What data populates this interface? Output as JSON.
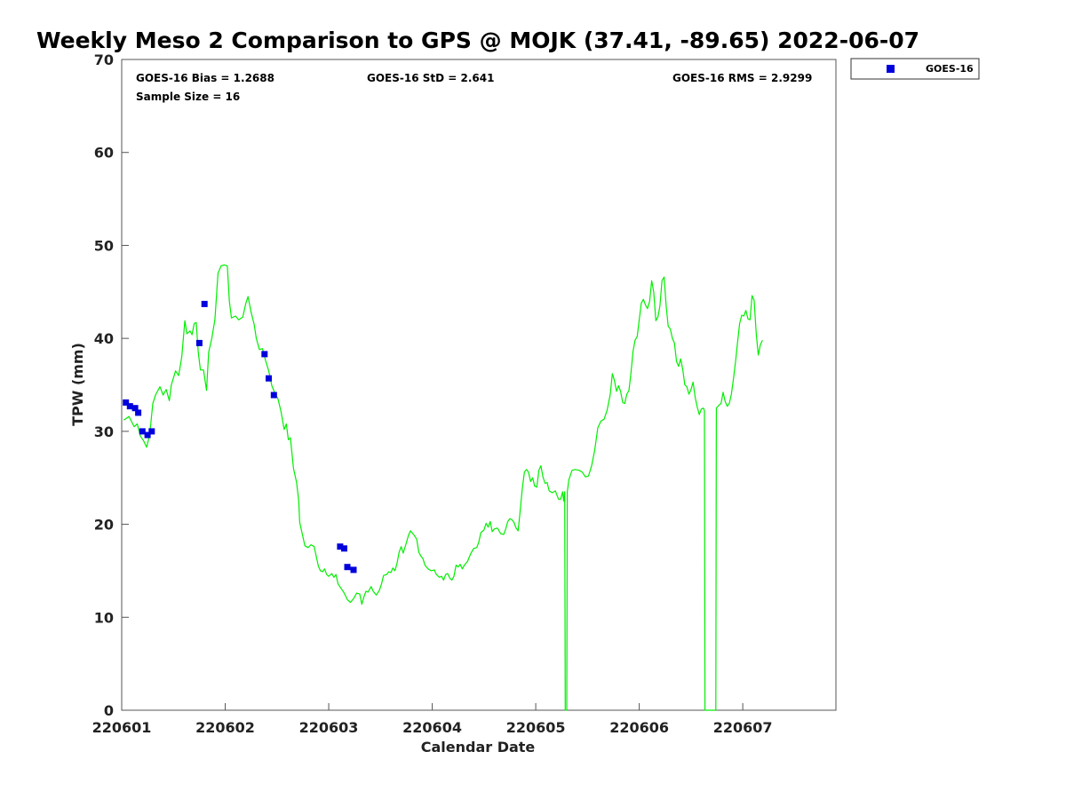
{
  "chart_data": {
    "type": "line",
    "title": "Weekly Meso 2 Comparison to GPS @ MOJK (37.41, -89.65) 2022-06-07",
    "xlabel": "Calendar Date",
    "ylabel": "TPW (mm)",
    "xlim": [
      0,
      6.9
    ],
    "ylim": [
      0,
      70
    ],
    "xticks": [
      0,
      1,
      2,
      3,
      4,
      5,
      6
    ],
    "xtick_labels": [
      "220601",
      "220602",
      "220603",
      "220604",
      "220605",
      "220606",
      "220607"
    ],
    "yticks": [
      0,
      10,
      20,
      30,
      40,
      50,
      60,
      70
    ],
    "ytick_labels": [
      "0",
      "10",
      "20",
      "30",
      "40",
      "50",
      "60",
      "70"
    ],
    "stats": {
      "bias": "GOES-16 Bias = 1.2688",
      "std": "GOES-16 StD = 2.641",
      "rms": "GOES-16 RMS = 2.9299",
      "sample": "Sample Size = 16"
    },
    "legend": {
      "label": "GOES-16",
      "placement": "top-right outside"
    },
    "series": [
      {
        "name": "GPS",
        "kind": "line",
        "color": "#00ee00",
        "points": [
          [
            0.02,
            31.2
          ],
          [
            0.07,
            31.6
          ],
          [
            0.12,
            30.5
          ],
          [
            0.15,
            30.8
          ],
          [
            0.18,
            29.5
          ],
          [
            0.21,
            29.0
          ],
          [
            0.24,
            28.3
          ],
          [
            0.27,
            29.6
          ],
          [
            0.3,
            33.0
          ],
          [
            0.33,
            34.0
          ],
          [
            0.37,
            34.8
          ],
          [
            0.4,
            33.9
          ],
          [
            0.43,
            34.5
          ],
          [
            0.46,
            33.3
          ],
          [
            0.48,
            35.0
          ],
          [
            0.52,
            36.5
          ],
          [
            0.55,
            36.0
          ],
          [
            0.58,
            38.0
          ],
          [
            0.61,
            41.9
          ],
          [
            0.63,
            40.5
          ],
          [
            0.66,
            40.8
          ],
          [
            0.68,
            40.4
          ],
          [
            0.7,
            41.6
          ],
          [
            0.72,
            41.7
          ],
          [
            0.74,
            38.5
          ],
          [
            0.76,
            36.6
          ],
          [
            0.79,
            36.6
          ],
          [
            0.82,
            34.4
          ],
          [
            0.84,
            38.5
          ],
          [
            0.87,
            40.0
          ],
          [
            0.9,
            42.0
          ],
          [
            0.93,
            47.0
          ],
          [
            0.96,
            47.8
          ],
          [
            0.99,
            47.9
          ],
          [
            1.02,
            47.8
          ],
          [
            1.04,
            44.0
          ],
          [
            1.06,
            42.2
          ],
          [
            1.1,
            42.4
          ],
          [
            1.13,
            42.0
          ],
          [
            1.17,
            42.3
          ],
          [
            1.2,
            43.8
          ],
          [
            1.22,
            44.5
          ],
          [
            1.25,
            42.8
          ],
          [
            1.28,
            41.5
          ],
          [
            1.3,
            40.0
          ],
          [
            1.33,
            38.8
          ],
          [
            1.36,
            38.9
          ],
          [
            1.39,
            37.6
          ],
          [
            1.42,
            36.5
          ],
          [
            1.45,
            34.9
          ],
          [
            1.48,
            34.1
          ],
          [
            1.51,
            33.5
          ],
          [
            1.54,
            32.1
          ],
          [
            1.57,
            30.2
          ],
          [
            1.59,
            30.8
          ],
          [
            1.61,
            29.1
          ],
          [
            1.63,
            29.3
          ],
          [
            1.66,
            26.0
          ],
          [
            1.69,
            24.5
          ],
          [
            1.71,
            22.5
          ],
          [
            1.72,
            20.2
          ],
          [
            1.74,
            19.2
          ],
          [
            1.77,
            17.7
          ],
          [
            1.8,
            17.5
          ],
          [
            1.83,
            17.8
          ],
          [
            1.86,
            17.6
          ],
          [
            1.88,
            16.5
          ],
          [
            1.9,
            15.5
          ],
          [
            1.92,
            15.0
          ],
          [
            1.94,
            14.9
          ],
          [
            1.96,
            15.2
          ],
          [
            1.98,
            14.6
          ],
          [
            2.0,
            14.4
          ],
          [
            2.03,
            14.7
          ],
          [
            2.05,
            14.3
          ],
          [
            2.07,
            14.6
          ],
          [
            2.09,
            13.6
          ],
          [
            2.12,
            13.1
          ],
          [
            2.15,
            12.6
          ],
          [
            2.18,
            11.9
          ],
          [
            2.21,
            11.6
          ],
          [
            2.24,
            12.0
          ],
          [
            2.27,
            12.6
          ],
          [
            2.3,
            12.5
          ],
          [
            2.32,
            11.4
          ],
          [
            2.34,
            12.2
          ],
          [
            2.36,
            12.8
          ],
          [
            2.38,
            12.7
          ],
          [
            2.41,
            13.3
          ],
          [
            2.43,
            12.8
          ],
          [
            2.46,
            12.4
          ],
          [
            2.49,
            12.9
          ],
          [
            2.51,
            13.6
          ],
          [
            2.53,
            14.5
          ],
          [
            2.56,
            14.6
          ],
          [
            2.58,
            14.9
          ],
          [
            2.6,
            14.8
          ],
          [
            2.62,
            15.3
          ],
          [
            2.64,
            15.0
          ],
          [
            2.66,
            15.8
          ],
          [
            2.68,
            17.0
          ],
          [
            2.7,
            17.6
          ],
          [
            2.72,
            16.9
          ],
          [
            2.75,
            18.0
          ],
          [
            2.77,
            18.8
          ],
          [
            2.79,
            19.3
          ],
          [
            2.82,
            18.9
          ],
          [
            2.85,
            18.4
          ],
          [
            2.87,
            17.0
          ],
          [
            2.89,
            16.6
          ],
          [
            2.91,
            16.3
          ],
          [
            2.93,
            15.6
          ],
          [
            2.96,
            15.2
          ],
          [
            2.99,
            15.0
          ],
          [
            3.02,
            15.1
          ],
          [
            3.04,
            14.6
          ],
          [
            3.07,
            14.3
          ],
          [
            3.09,
            14.4
          ],
          [
            3.11,
            14.0
          ],
          [
            3.13,
            14.6
          ],
          [
            3.15,
            14.7
          ],
          [
            3.17,
            14.2
          ],
          [
            3.19,
            14.0
          ],
          [
            3.21,
            14.4
          ],
          [
            3.23,
            15.6
          ],
          [
            3.25,
            15.4
          ],
          [
            3.27,
            15.7
          ],
          [
            3.29,
            15.2
          ],
          [
            3.31,
            15.6
          ],
          [
            3.34,
            16.0
          ],
          [
            3.37,
            16.8
          ],
          [
            3.4,
            17.4
          ],
          [
            3.43,
            17.5
          ],
          [
            3.45,
            18.1
          ],
          [
            3.47,
            19.1
          ],
          [
            3.5,
            19.4
          ],
          [
            3.52,
            20.1
          ],
          [
            3.54,
            19.7
          ],
          [
            3.56,
            20.3
          ],
          [
            3.58,
            19.2
          ],
          [
            3.6,
            19.5
          ],
          [
            3.63,
            19.6
          ],
          [
            3.66,
            19.0
          ],
          [
            3.69,
            18.9
          ],
          [
            3.71,
            19.5
          ],
          [
            3.73,
            20.3
          ],
          [
            3.75,
            20.6
          ],
          [
            3.77,
            20.5
          ],
          [
            3.79,
            20.2
          ],
          [
            3.81,
            19.6
          ],
          [
            3.83,
            19.3
          ],
          [
            3.85,
            21.5
          ],
          [
            3.87,
            23.8
          ],
          [
            3.89,
            25.6
          ],
          [
            3.91,
            25.9
          ],
          [
            3.93,
            25.6
          ],
          [
            3.95,
            24.6
          ],
          [
            3.97,
            25.0
          ],
          [
            3.99,
            24.1
          ],
          [
            4.01,
            24.0
          ],
          [
            4.03,
            25.8
          ],
          [
            4.05,
            26.3
          ],
          [
            4.07,
            25.1
          ],
          [
            4.09,
            24.4
          ],
          [
            4.11,
            24.5
          ],
          [
            4.13,
            23.6
          ],
          [
            4.16,
            23.4
          ],
          [
            4.19,
            23.6
          ],
          [
            4.22,
            22.7
          ],
          [
            4.24,
            22.7
          ],
          [
            4.26,
            23.5
          ],
          [
            4.27,
            22.5
          ],
          [
            4.28,
            23.5
          ],
          [
            4.285,
            0
          ],
          [
            4.3,
            0
          ],
          [
            4.305,
            23.5
          ],
          [
            4.32,
            24.8
          ],
          [
            4.35,
            25.8
          ],
          [
            4.38,
            25.9
          ],
          [
            4.42,
            25.8
          ],
          [
            4.45,
            25.6
          ],
          [
            4.48,
            25.1
          ],
          [
            4.51,
            25.2
          ],
          [
            4.54,
            26.3
          ],
          [
            4.57,
            28.0
          ],
          [
            4.6,
            30.4
          ],
          [
            4.63,
            31.1
          ],
          [
            4.66,
            31.3
          ],
          [
            4.69,
            32.3
          ],
          [
            4.72,
            34.0
          ],
          [
            4.74,
            36.2
          ],
          [
            4.76,
            35.5
          ],
          [
            4.78,
            34.3
          ],
          [
            4.8,
            34.9
          ],
          [
            4.82,
            34.3
          ],
          [
            4.84,
            33.1
          ],
          [
            4.86,
            33.0
          ],
          [
            4.88,
            34.0
          ],
          [
            4.9,
            34.4
          ],
          [
            4.92,
            36.3
          ],
          [
            4.94,
            38.6
          ],
          [
            4.96,
            39.8
          ],
          [
            4.98,
            40.2
          ],
          [
            5.0,
            42.0
          ],
          [
            5.02,
            43.8
          ],
          [
            5.04,
            44.2
          ],
          [
            5.06,
            43.6
          ],
          [
            5.08,
            43.2
          ],
          [
            5.1,
            44.0
          ],
          [
            5.12,
            46.2
          ],
          [
            5.14,
            45.0
          ],
          [
            5.16,
            41.9
          ],
          [
            5.18,
            42.3
          ],
          [
            5.2,
            43.5
          ],
          [
            5.22,
            46.2
          ],
          [
            5.24,
            46.6
          ],
          [
            5.26,
            43.5
          ],
          [
            5.28,
            41.3
          ],
          [
            5.3,
            41.0
          ],
          [
            5.32,
            40.0
          ],
          [
            5.34,
            39.5
          ],
          [
            5.36,
            37.5
          ],
          [
            5.38,
            37.0
          ],
          [
            5.4,
            37.8
          ],
          [
            5.42,
            36.7
          ],
          [
            5.44,
            35.0
          ],
          [
            5.46,
            34.8
          ],
          [
            5.48,
            34.0
          ],
          [
            5.5,
            34.5
          ],
          [
            5.52,
            35.3
          ],
          [
            5.54,
            33.7
          ],
          [
            5.56,
            32.6
          ],
          [
            5.58,
            31.8
          ],
          [
            5.6,
            32.4
          ],
          [
            5.62,
            32.5
          ],
          [
            5.63,
            32.2
          ],
          [
            5.635,
            0
          ],
          [
            5.74,
            0
          ],
          [
            5.745,
            32.5
          ],
          [
            5.77,
            32.8
          ],
          [
            5.79,
            33.0
          ],
          [
            5.81,
            34.2
          ],
          [
            5.83,
            33.2
          ],
          [
            5.85,
            32.7
          ],
          [
            5.87,
            33.0
          ],
          [
            5.89,
            34.0
          ],
          [
            5.91,
            35.6
          ],
          [
            5.93,
            37.5
          ],
          [
            5.95,
            39.6
          ],
          [
            5.97,
            41.6
          ],
          [
            5.99,
            42.5
          ],
          [
            6.01,
            42.4
          ],
          [
            6.03,
            43.0
          ],
          [
            6.05,
            42.1
          ],
          [
            6.07,
            42.0
          ],
          [
            6.09,
            44.6
          ],
          [
            6.11,
            44.1
          ],
          [
            6.13,
            40.5
          ],
          [
            6.15,
            38.2
          ],
          [
            6.17,
            39.3
          ],
          [
            6.19,
            39.8
          ]
        ]
      },
      {
        "name": "GOES-16",
        "kind": "scatter",
        "color": "#0000dd",
        "points": [
          [
            0.04,
            33.1
          ],
          [
            0.08,
            32.7
          ],
          [
            0.13,
            32.5
          ],
          [
            0.16,
            32.0
          ],
          [
            0.2,
            30.0
          ],
          [
            0.25,
            29.6
          ],
          [
            0.29,
            30.0
          ],
          [
            0.75,
            39.5
          ],
          [
            0.8,
            43.7
          ],
          [
            1.38,
            38.3
          ],
          [
            1.42,
            35.7
          ],
          [
            1.47,
            33.9
          ],
          [
            2.11,
            17.6
          ],
          [
            2.15,
            17.4
          ],
          [
            2.18,
            15.4
          ],
          [
            2.24,
            15.1
          ]
        ]
      }
    ]
  }
}
